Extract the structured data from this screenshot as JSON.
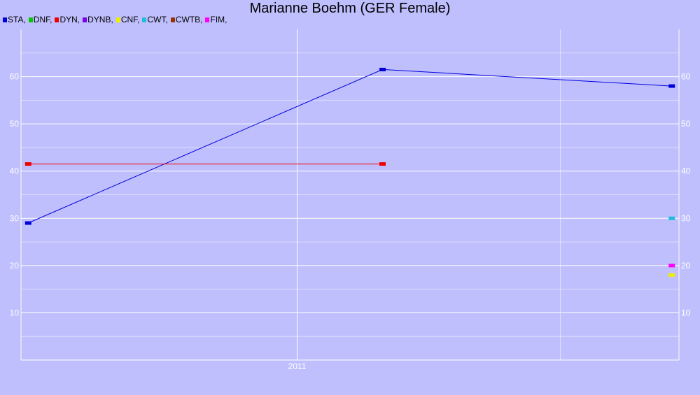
{
  "chart_data": {
    "type": "line",
    "title": "Marianne Boehm (GER Female)",
    "legend_placement": "top-left",
    "grid": true,
    "ylim": [
      0,
      70
    ],
    "y_ticks": [
      10,
      20,
      30,
      40,
      50,
      60
    ],
    "y_tick_labels": [
      "10",
      "20",
      "30",
      "40",
      "50",
      "60"
    ],
    "xlim": [
      "2010-06-24",
      "2011-09-22"
    ],
    "x_ticks": [
      "2011-01-01"
    ],
    "x_tick_labels": [
      "2011"
    ],
    "colors": {
      "background": "#bfbffe",
      "grid": "#ffffff"
    },
    "series": [
      {
        "name": "STA",
        "color": "#0000dd",
        "points": [
          [
            "2010-06-29",
            29
          ],
          [
            "2011-03-01",
            61.5
          ],
          [
            "2011-09-17",
            58
          ]
        ]
      },
      {
        "name": "DNF",
        "color": "#00cc00",
        "points": []
      },
      {
        "name": "DYN",
        "color": "#ee0000",
        "points": [
          [
            "2010-06-29",
            41.5
          ],
          [
            "2011-03-01",
            41.5
          ]
        ]
      },
      {
        "name": "DYNB",
        "color": "#7700ee",
        "points": []
      },
      {
        "name": "CNF",
        "color": "#eeee00",
        "points": [
          [
            "2011-09-17",
            18
          ]
        ]
      },
      {
        "name": "CWT",
        "color": "#22bbdd",
        "points": [
          [
            "2011-09-17",
            30
          ]
        ]
      },
      {
        "name": "CWTB",
        "color": "#993300",
        "points": []
      },
      {
        "name": "FIM",
        "color": "#ff00ff",
        "points": [
          [
            "2011-09-17",
            20
          ]
        ]
      }
    ]
  }
}
